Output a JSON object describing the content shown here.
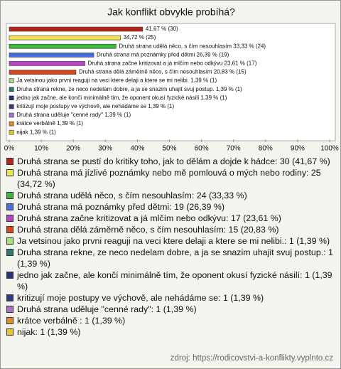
{
  "chart_data": {
    "type": "barh",
    "title": "Jak konflikt obvykle probíhá?",
    "values": [
      41.67,
      34.72,
      33.33,
      26.39,
      23.61,
      20.83,
      1.39,
      1.39,
      1.39,
      1.39,
      1.39,
      1.39,
      1.39
    ],
    "value_labels": [
      "41,67 % (30)",
      "34,72 % (25)",
      "Druhá strana udělá něco, s čím nesouhlasím 33,33 % (24)",
      "Druhá strana má poznámky před dětmi 26,39 % (19)",
      "Druhá strana začne kritizovat a já mlčím nebo odkývu 23,61 % (17)",
      "Druhá strana dělá záměrně něco, s čím nesouhlasím 20,83 % (15)",
      "Ja vetsinou jako prvni reaguji na veci ktere delaji a ktere se mi nelibi. 1,39 % (1)",
      "Druha strana rekne, ze neco nedelam dobre, a ja se snazim uhajit svuj postup. 1,39 % (1)",
      "jedno jak začne, ale končí minimálně tím, že oponent okusí fyzické násilí 1,39 % (1)",
      "kritizují moje postupy ve výchově, ale nehádáme se 1,39 % (1)",
      "Druhá strana uděluje \"cenné rady\" 1,39 % (1)",
      "krátce verbálně  1,39 % (1)",
      "nijak 1,39 % (1)"
    ],
    "legend_labels": [
      "Druhá strana se pustí do kritiky toho, jak to dělám a dojde k hádce: 30 (41,67 %)",
      "Druhá strana má jízlivé poznámky nebo mě pomlouvá o mých nebo rodiny: 25 (34,72 %)",
      "Druhá strana udělá něco, s čím nesouhlasím: 24 (33,33 %)",
      "Druhá strana má poznámky před dětmi: 19 (26,39 %)",
      "Druhá strana začne kritizovat a já mlčím nebo odkývu: 17 (23,61 %)",
      "Druhá strana dělá záměrně něco, s čím nesouhlasím: 15 (20,83 %)",
      "Ja vetsinou jako prvni reaguji na veci ktere delaji a ktere se mi nelibi.: 1 (1,39 %)",
      "Druha strana rekne, ze neco nedelam dobre, a ja se snazim uhajit svuj postup.: 1 (1,39 %)",
      "jedno jak začne, ale končí minimálně tím, že oponent okusí fyzické násilí: 1 (1,39 %)",
      "kritizují moje postupy ve výchově, ale nehádáme se: 1 (1,39 %)",
      "Druhá strana uděluje \"cenné rady\": 1 (1,39 %)",
      "krátce verbálně : 1 (1,39 %)",
      "nijak: 1 (1,39 %)"
    ],
    "colors": [
      "#b8251b",
      "#f0e24a",
      "#3cb83c",
      "#4a6ee0",
      "#b845c8",
      "#d9441a",
      "#a8e07a",
      "#2f7a6a",
      "#24347a",
      "#2a3e8a",
      "#b070c0",
      "#e08a28",
      "#e0c830",
      "#80d840"
    ],
    "xlim": [
      0,
      100
    ],
    "xticks": [
      {
        "value": 0,
        "label": "0%"
      },
      {
        "value": 10,
        "label": "10%"
      },
      {
        "value": 20,
        "label": "20%"
      },
      {
        "value": 30,
        "label": "30%"
      },
      {
        "value": 40,
        "label": "40%"
      },
      {
        "value": 50,
        "label": "50%"
      },
      {
        "value": 60,
        "label": "60%"
      },
      {
        "value": 70,
        "label": "70%"
      },
      {
        "value": 80,
        "label": "80%"
      },
      {
        "value": 90,
        "label": "90%"
      },
      {
        "value": 100,
        "label": "100%"
      }
    ],
    "grid": false,
    "source": "zdroj: https://rodicovstvi-a-konflikty.vyplnto.cz"
  }
}
